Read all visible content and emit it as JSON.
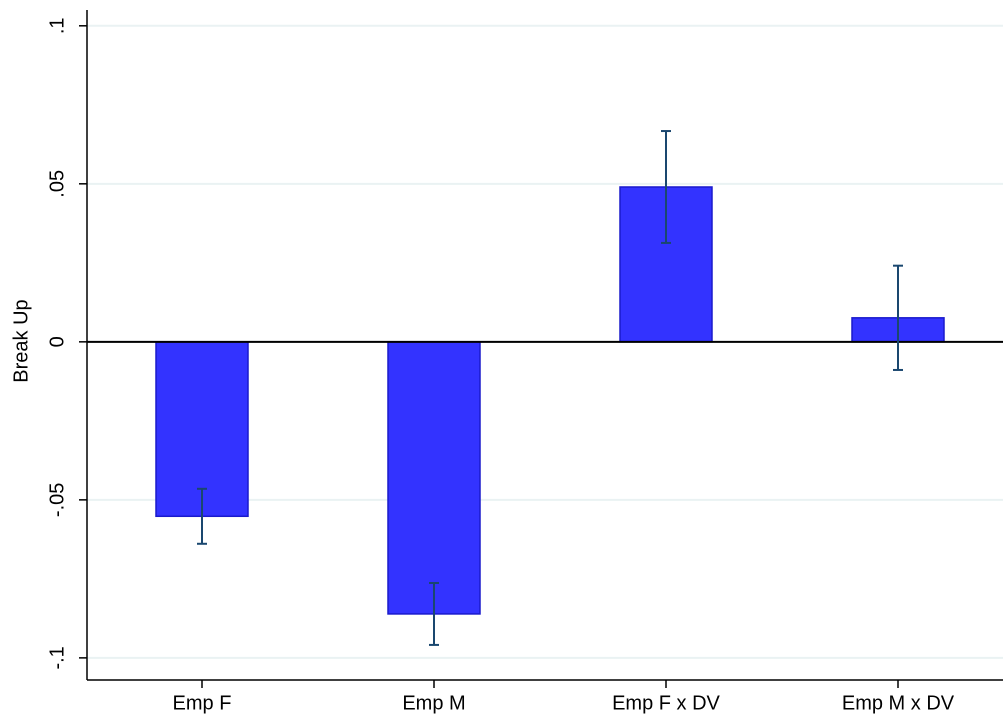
{
  "chart_data": {
    "type": "bar",
    "y_label": "Break Up",
    "categories": [
      "Emp F",
      "Emp M",
      "Emp F x DV",
      "Emp M x DV"
    ],
    "values": [
      -0.0552,
      -0.0861,
      0.049,
      0.0076
    ],
    "errors": [
      0.0087,
      0.0098,
      0.0177,
      0.0165
    ],
    "color": "#3333ff",
    "edge_color": "#1a1acc",
    "error_color": "#1a476f",
    "ylim": [
      -0.107,
      0.105
    ],
    "yticks": [
      {
        "value": -0.1,
        "label": "-.1"
      },
      {
        "value": -0.05,
        "label": "-.05"
      },
      0,
      {
        "value": 0.05,
        "label": ".05"
      },
      {
        "value": 0.1,
        "label": ".1"
      }
    ],
    "grid": true
  }
}
